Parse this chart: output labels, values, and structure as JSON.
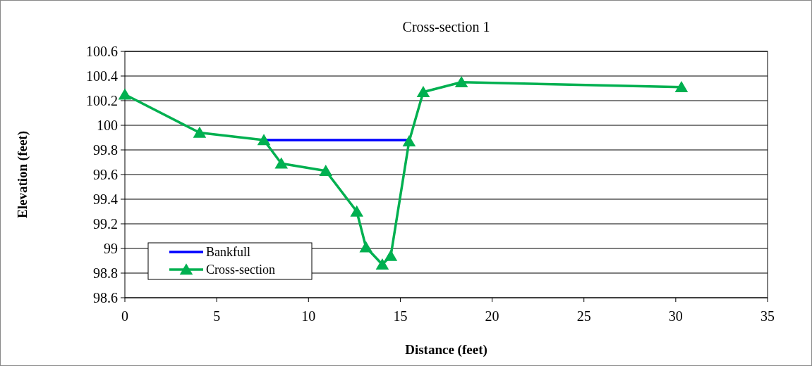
{
  "chart_data": {
    "type": "line",
    "title": "Cross-section 1",
    "xlabel": "Distance (feet)",
    "ylabel": "Elevation (feet)",
    "xlim": [
      0,
      35
    ],
    "xticks": [
      0,
      5,
      10,
      15,
      20,
      25,
      30,
      35
    ],
    "ylim": [
      98.6,
      100.6
    ],
    "yticks": [
      98.6,
      98.8,
      99,
      99.2,
      99.4,
      99.6,
      99.8,
      100,
      100.2,
      100.4,
      100.6
    ],
    "grid": "y",
    "legend": "bottom left",
    "line_style": "solid",
    "series": [
      {
        "name": "Bankfull",
        "color": "#0000ff",
        "marker": "none",
        "x": [
          7.57,
          15.48
        ],
        "values": [
          99.88,
          99.88
        ]
      },
      {
        "name": "Cross-section",
        "color": "#00b050",
        "marker": "triangle",
        "x": [
          0,
          4.07,
          7.57,
          8.52,
          10.94,
          12.63,
          13.13,
          14.02,
          14.48,
          15.48,
          16.25,
          18.33,
          30.31
        ],
        "values": [
          100.25,
          99.94,
          99.88,
          99.69,
          99.63,
          99.3,
          99.01,
          98.87,
          98.94,
          99.87,
          100.27,
          100.35,
          100.31
        ]
      }
    ]
  }
}
